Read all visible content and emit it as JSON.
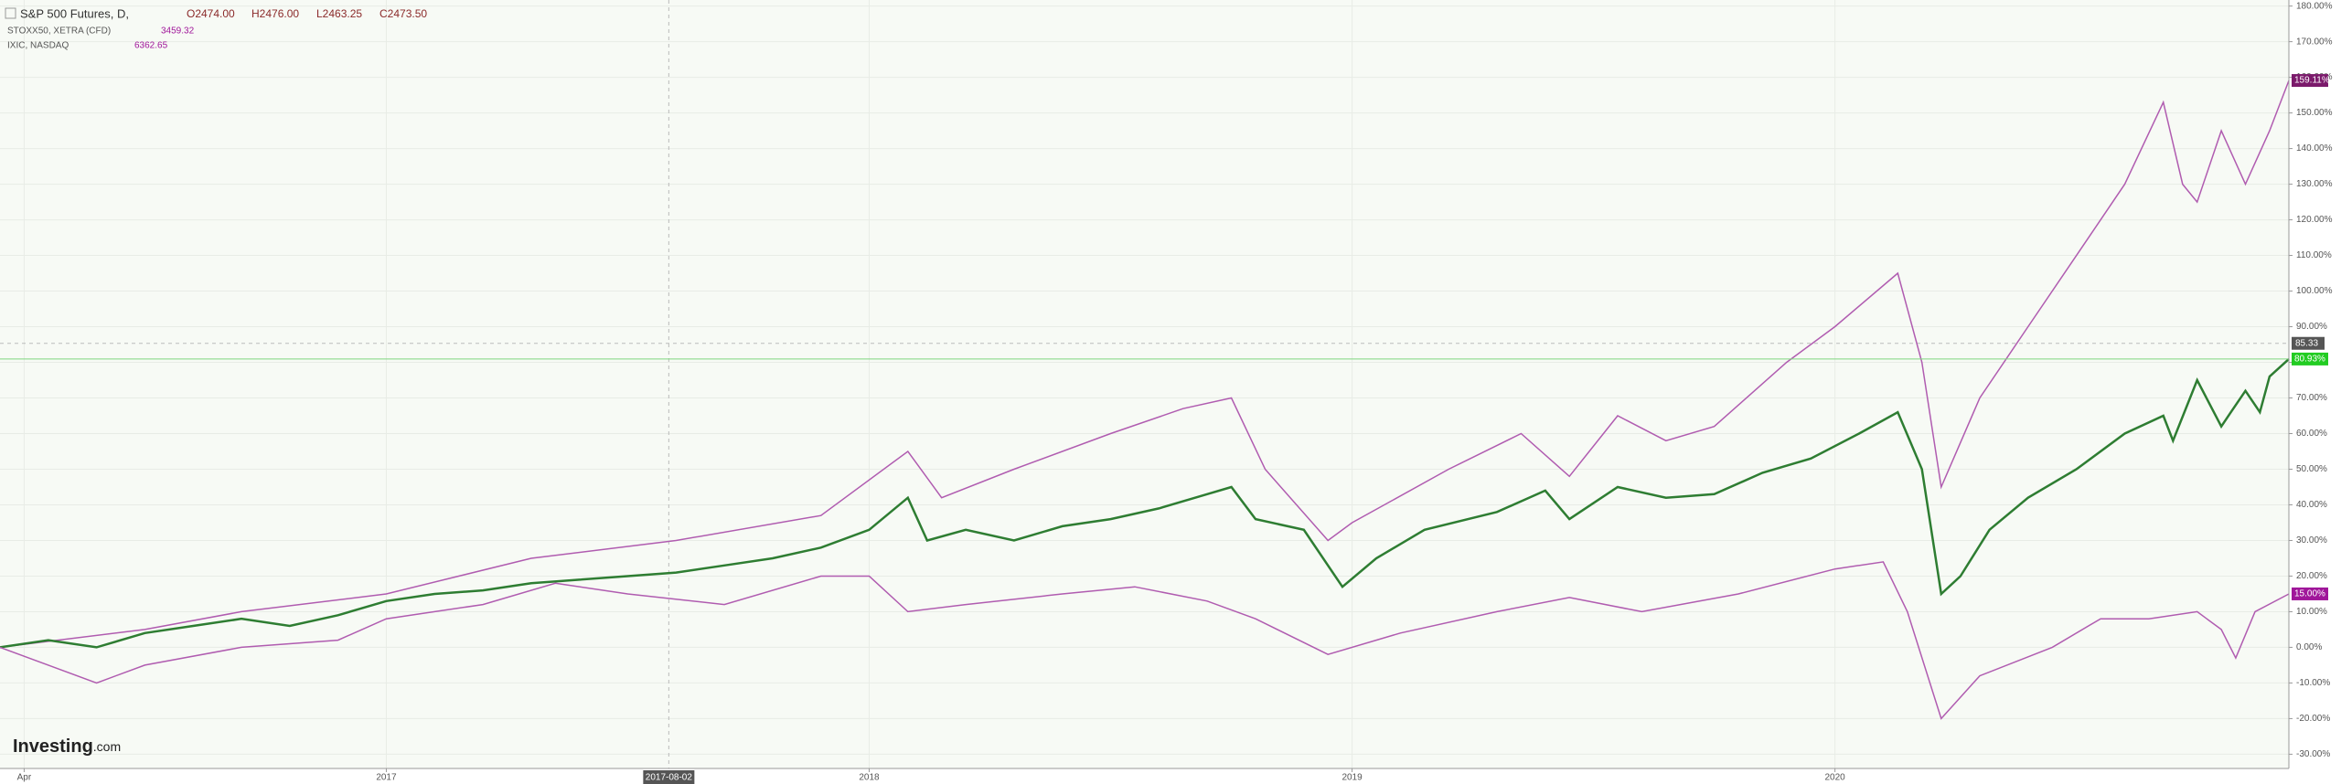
{
  "chart_data": {
    "type": "line",
    "header": {
      "symbol": "S&P 500 Futures, D,",
      "ohlc": [
        "O2474.00",
        "H2476.00",
        "L2463.25",
        "C2473.50"
      ]
    },
    "legend": [
      {
        "name": "STOXX50, XETRA (CFD)",
        "price": "3459.32"
      },
      {
        "name": "IXIC, NASDAQ",
        "price": "6362.65"
      }
    ],
    "watermark": [
      "Investing",
      ".com"
    ],
    "xlim": [
      2016.2,
      2020.94
    ],
    "xticks": [
      {
        "value": 2016.25,
        "label": "Apr"
      },
      {
        "value": 2017,
        "label": "2017"
      },
      {
        "value": 2018,
        "label": "2018"
      },
      {
        "value": 2019,
        "label": "2019"
      },
      {
        "value": 2020,
        "label": "2020"
      }
    ],
    "ylim": [
      -34,
      181.7
    ],
    "yticks": [
      {
        "value": -30,
        "label": "-30.00%"
      },
      {
        "value": -20,
        "label": "-20.00%"
      },
      {
        "value": -10,
        "label": "-10.00%"
      },
      {
        "value": 0,
        "label": "0.00%"
      },
      {
        "value": 10,
        "label": "10.00%"
      },
      {
        "value": 20,
        "label": "20.00%"
      },
      {
        "value": 30,
        "label": "30.00%"
      },
      {
        "value": 40,
        "label": "40.00%"
      },
      {
        "value": 50,
        "label": "50.00%"
      },
      {
        "value": 60,
        "label": "60.00%"
      },
      {
        "value": 70,
        "label": "70.00%"
      },
      {
        "value": 80,
        "label": "80.00%"
      },
      {
        "value": 90,
        "label": "90.00%"
      },
      {
        "value": 100,
        "label": "100.00%"
      },
      {
        "value": 110,
        "label": "110.00%"
      },
      {
        "value": 120,
        "label": "120.00%"
      },
      {
        "value": 130,
        "label": "130.00%"
      },
      {
        "value": 140,
        "label": "140.00%"
      },
      {
        "value": 150,
        "label": "150.00%"
      },
      {
        "value": 160,
        "label": "160.00%"
      },
      {
        "value": 170,
        "label": "170.00%"
      },
      {
        "value": 180,
        "label": "180.00%"
      }
    ],
    "grid": true,
    "crosshair": {
      "x": {
        "value": 2017.585,
        "label": "2017-08-02"
      },
      "y": {
        "value": 85.33,
        "label": "85.33"
      }
    },
    "series": [
      {
        "name": "IXIC, NASDAQ",
        "color": "#b05cb0",
        "label_color": "#7b1a6b",
        "x": [
          2016.2,
          2016.5,
          2016.7,
          2017.0,
          2017.3,
          2017.6,
          2017.9,
          2018.08,
          2018.15,
          2018.3,
          2018.5,
          2018.65,
          2018.75,
          2018.82,
          2018.95,
          2019.0,
          2019.2,
          2019.35,
          2019.45,
          2019.55,
          2019.65,
          2019.75,
          2019.9,
          2020.0,
          2020.13,
          2020.18,
          2020.22,
          2020.3,
          2020.4,
          2020.5,
          2020.6,
          2020.68,
          2020.72,
          2020.75,
          2020.8,
          2020.85,
          2020.9,
          2020.94
        ],
        "values": [
          0,
          5,
          10,
          15,
          25,
          30,
          37,
          55,
          42,
          50,
          60,
          67,
          70,
          50,
          30,
          35,
          50,
          60,
          48,
          65,
          58,
          62,
          80,
          90,
          105,
          80,
          45,
          70,
          90,
          110,
          130,
          153,
          130,
          125,
          145,
          130,
          145,
          159.11
        ],
        "value_labels": [
          null,
          null,
          null,
          null,
          null,
          null,
          null,
          null,
          null,
          null,
          null,
          null,
          null,
          null,
          null,
          null,
          null,
          null,
          null,
          null,
          null,
          null,
          null,
          null,
          null,
          null,
          null,
          null,
          null,
          null,
          null,
          null,
          null,
          null,
          null,
          null,
          null,
          "159.11%"
        ]
      },
      {
        "name": "S&P 500 Futures, D,",
        "color": "#2e7d32",
        "label_color": "#22cc22",
        "x": [
          2016.2,
          2016.3,
          2016.4,
          2016.5,
          2016.6,
          2016.7,
          2016.8,
          2016.9,
          2017.0,
          2017.1,
          2017.2,
          2017.3,
          2017.4,
          2017.5,
          2017.6,
          2017.7,
          2017.8,
          2017.9,
          2018.0,
          2018.08,
          2018.12,
          2018.2,
          2018.3,
          2018.4,
          2018.5,
          2018.6,
          2018.7,
          2018.75,
          2018.8,
          2018.9,
          2018.98,
          2019.05,
          2019.15,
          2019.3,
          2019.4,
          2019.45,
          2019.55,
          2019.65,
          2019.75,
          2019.85,
          2019.95,
          2020.05,
          2020.13,
          2020.18,
          2020.22,
          2020.26,
          2020.32,
          2020.4,
          2020.5,
          2020.6,
          2020.68,
          2020.7,
          2020.75,
          2020.8,
          2020.82,
          2020.85,
          2020.88,
          2020.9,
          2020.94
        ],
        "values": [
          0,
          2,
          0,
          4,
          6,
          8,
          6,
          9,
          13,
          15,
          16,
          18,
          19,
          20,
          21,
          23,
          25,
          28,
          33,
          42,
          30,
          33,
          30,
          34,
          36,
          39,
          43,
          45,
          36,
          33,
          17,
          25,
          33,
          38,
          44,
          36,
          45,
          42,
          43,
          49,
          53,
          60,
          66,
          50,
          15,
          20,
          33,
          42,
          50,
          60,
          65,
          58,
          75,
          62,
          66,
          72,
          66,
          76,
          80.93
        ],
        "value_labels": [
          null,
          null,
          null,
          null,
          null,
          null,
          null,
          null,
          null,
          null,
          null,
          null,
          null,
          null,
          null,
          null,
          null,
          null,
          null,
          null,
          null,
          null,
          null,
          null,
          null,
          null,
          null,
          null,
          null,
          null,
          null,
          null,
          null,
          null,
          null,
          null,
          null,
          null,
          null,
          null,
          null,
          null,
          null,
          null,
          null,
          null,
          null,
          null,
          null,
          null,
          null,
          null,
          null,
          null,
          null,
          null,
          null,
          null,
          "80.93%"
        ]
      },
      {
        "name": "STOXX50, XETRA (CFD)",
        "color": "#b05cb0",
        "label_color": "#a0169a",
        "x": [
          2016.2,
          2016.3,
          2016.4,
          2016.5,
          2016.7,
          2016.9,
          2017.0,
          2017.2,
          2017.35,
          2017.5,
          2017.7,
          2017.9,
          2018.0,
          2018.08,
          2018.2,
          2018.4,
          2018.55,
          2018.7,
          2018.8,
          2018.95,
          2019.1,
          2019.3,
          2019.45,
          2019.6,
          2019.8,
          2020.0,
          2020.1,
          2020.15,
          2020.22,
          2020.3,
          2020.45,
          2020.55,
          2020.65,
          2020.75,
          2020.8,
          2020.83,
          2020.87,
          2020.94
        ],
        "values": [
          0,
          -5,
          -10,
          -5,
          0,
          2,
          8,
          12,
          18,
          15,
          12,
          20,
          20,
          10,
          12,
          15,
          17,
          13,
          8,
          -2,
          4,
          10,
          14,
          10,
          15,
          22,
          24,
          10,
          -20,
          -8,
          0,
          8,
          8,
          10,
          5,
          -3,
          10,
          15
        ],
        "value_labels": [
          null,
          null,
          null,
          null,
          null,
          null,
          null,
          null,
          null,
          null,
          null,
          null,
          null,
          null,
          null,
          null,
          null,
          null,
          null,
          null,
          null,
          null,
          null,
          null,
          null,
          null,
          null,
          null,
          null,
          null,
          null,
          null,
          null,
          null,
          null,
          null,
          null,
          "15.00%"
        ]
      }
    ]
  }
}
